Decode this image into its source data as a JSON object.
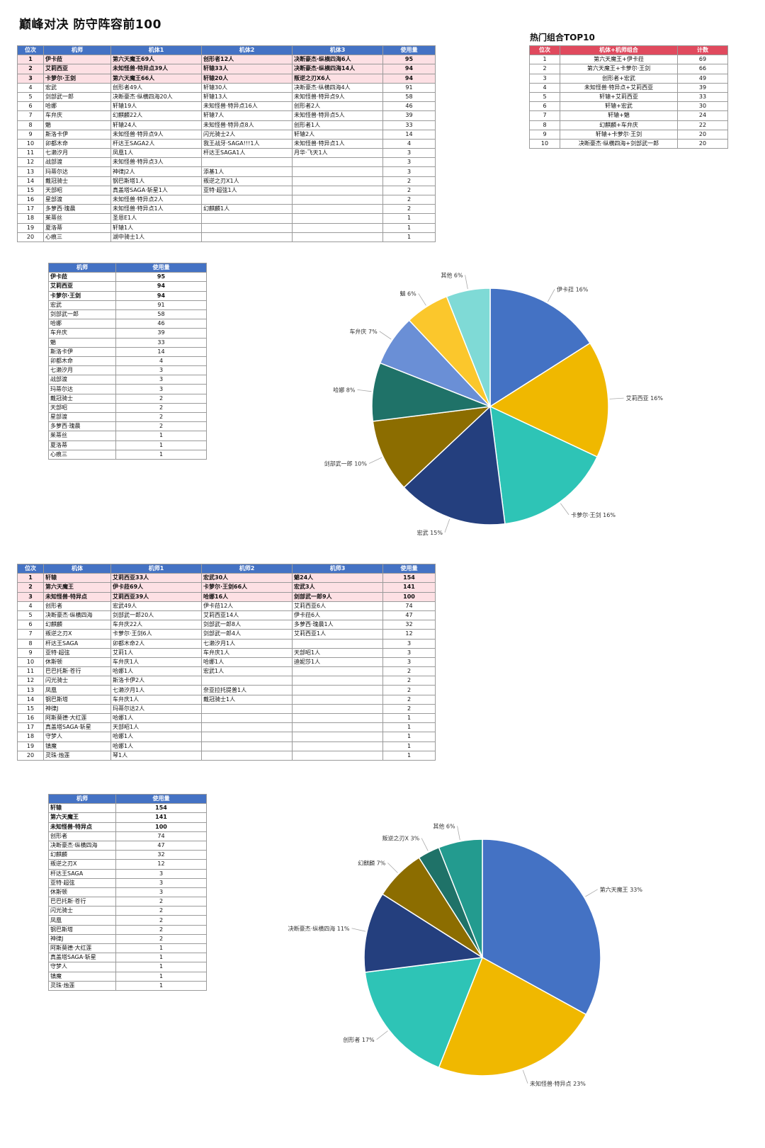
{
  "page_title": "巅峰对决 防守阵容前100",
  "combo_title": "热门组合TOP10",
  "colors": {
    "header_blue": "#4472c4",
    "header_red": "#e04a5e",
    "top_row": "#fde0e4"
  },
  "top_table": {
    "headers": [
      "位次",
      "机师",
      "机体1",
      "机体2",
      "机体3",
      "使用量"
    ],
    "rows": [
      [
        "1",
        "伊卡菈",
        "第六天魔王69人",
        "创形者12人",
        "决断豪杰·纵横四海6人",
        "95"
      ],
      [
        "2",
        "艾莉西亚",
        "未知怪兽·特异点39人",
        "轩辕33人",
        "决断豪杰·纵横四海14人",
        "94"
      ],
      [
        "3",
        "卡萝尔·王剑",
        "第六天魔王66人",
        "轩辕20人",
        "叛逆之刃X6人",
        "94"
      ],
      [
        "4",
        "宏武",
        "创形者49人",
        "轩辕30人",
        "决断豪杰·纵横四海4人",
        "91"
      ],
      [
        "5",
        "剑部武一郎",
        "决断豪杰·纵横四海20人",
        "轩辕13人",
        "未知怪兽·特异点9人",
        "58"
      ],
      [
        "6",
        "哈娜",
        "轩辕19人",
        "未知怪兽·特异点16人",
        "创形者2人",
        "46"
      ],
      [
        "7",
        "车弁庆",
        "幻麒麟22人",
        "轩辕7人",
        "未知怪兽·特异点5人",
        "39"
      ],
      [
        "8",
        "魈",
        "轩辕24人",
        "未知怪兽·特异点8人",
        "创形者1人",
        "33"
      ],
      [
        "9",
        "斯洛卡伊",
        "未知怪兽·特异点9人",
        "闪光骑士2人",
        "轩辕2人",
        "14"
      ],
      [
        "10",
        "卯都木命",
        "杆达王SAGA2人",
        "我王战牙·SAGA!!!1人",
        "未知怪兽·特异点1人",
        "4"
      ],
      [
        "11",
        "七濑汐月",
        "凤凰1人",
        "杆达王SAGA1人",
        "月华·飞天1人",
        "3"
      ],
      [
        "12",
        "战部渡",
        "未知怪兽·特异点3人",
        "",
        "",
        "3"
      ],
      [
        "13",
        "玛蒂尔达",
        "神律J2人",
        "添基1人",
        "",
        "3"
      ],
      [
        "14",
        "戴冠骑士",
        "钢巴斯塔1人",
        "叛逆之刃X1人",
        "",
        "2"
      ],
      [
        "15",
        "天部昭",
        "真盖塔SAGA·斩星1人",
        "亚特·超弦1人",
        "",
        "2"
      ],
      [
        "16",
        "星部渡",
        "未知怪兽·特异点2人",
        "",
        "",
        "2"
      ],
      [
        "17",
        "多萝西·瑰晨",
        "未知怪兽·特异点1人",
        "幻麒麟1人",
        "",
        "2"
      ],
      [
        "18",
        "茱蒂丝",
        "圣恩E1人",
        "",
        "",
        "1"
      ],
      [
        "19",
        "夏洛蒂",
        "轩辕1人",
        "",
        "",
        "1"
      ],
      [
        "20",
        "心痕三",
        "湖中骑士1人",
        "",
        "",
        "1"
      ]
    ]
  },
  "combo_table": {
    "headers": [
      "位次",
      "机体+机师组合",
      "计数"
    ],
    "rows": [
      [
        "1",
        "第六天魔王+伊卡菈",
        "69"
      ],
      [
        "2",
        "第六天魔王+卡萝尔·王剑",
        "66"
      ],
      [
        "3",
        "创形者+宏武",
        "49"
      ],
      [
        "4",
        "未知怪兽·特异点+艾莉西亚",
        "39"
      ],
      [
        "5",
        "轩辕+艾莉西亚",
        "33"
      ],
      [
        "6",
        "轩辕+宏武",
        "30"
      ],
      [
        "7",
        "轩辕+魈",
        "24"
      ],
      [
        "8",
        "幻麒麟+车弁庆",
        "22"
      ],
      [
        "9",
        "轩辕+卡萝尔·王剑",
        "20"
      ],
      [
        "10",
        "决断豪杰·纵横四海+剑部武一郎",
        "20"
      ]
    ]
  },
  "pilot_usage_table": {
    "headers": [
      "机师",
      "使用量"
    ],
    "rows": [
      [
        "伊卡菈",
        "95"
      ],
      [
        "艾莉西亚",
        "94"
      ],
      [
        "卡萝尔·王剑",
        "94"
      ],
      [
        "宏武",
        "91"
      ],
      [
        "剑部武一郎",
        "58"
      ],
      [
        "哈娜",
        "46"
      ],
      [
        "车弁庆",
        "39"
      ],
      [
        "魈",
        "33"
      ],
      [
        "斯洛卡伊",
        "14"
      ],
      [
        "卯都木命",
        "4"
      ],
      [
        "七濑汐月",
        "3"
      ],
      [
        "战部渡",
        "3"
      ],
      [
        "玛蒂尔达",
        "3"
      ],
      [
        "戴冠骑士",
        "2"
      ],
      [
        "天部昭",
        "2"
      ],
      [
        "星部渡",
        "2"
      ],
      [
        "多萝西·瑰晨",
        "2"
      ],
      [
        "茱蒂丝",
        "1"
      ],
      [
        "夏洛蒂",
        "1"
      ],
      [
        "心痕三",
        "1"
      ]
    ]
  },
  "mech_table": {
    "headers": [
      "位次",
      "机体",
      "机师1",
      "机师2",
      "机师3",
      "使用量"
    ],
    "rows": [
      [
        "1",
        "轩辕",
        "艾莉西亚33人",
        "宏武30人",
        "魈24人",
        "154"
      ],
      [
        "2",
        "第六天魔王",
        "伊卡菈69人",
        "卡萝尔·王剑66人",
        "宏武3人",
        "141"
      ],
      [
        "3",
        "未知怪兽·特异点",
        "艾莉西亚39人",
        "哈娜16人",
        "剑部武一郎9人",
        "100"
      ],
      [
        "4",
        "创形者",
        "宏武49人",
        "伊卡菈12人",
        "艾莉西亚6人",
        "74"
      ],
      [
        "5",
        "决断豪杰·纵横四海",
        "剑部武一郎20人",
        "艾莉西亚14人",
        "伊卡菈6人",
        "47"
      ],
      [
        "6",
        "幻麒麟",
        "车弁庆22人",
        "剑部武一郎8人",
        "多萝西·瑰晨1人",
        "32"
      ],
      [
        "7",
        "叛逆之刃X",
        "卡萝尔·王剑6人",
        "剑部武一郎4人",
        "艾莉西亚1人",
        "12"
      ],
      [
        "8",
        "杆达王SAGA",
        "卯都木命2人",
        "七濑汐月1人",
        "",
        "3"
      ],
      [
        "9",
        "亚特·超弦",
        "艾莉1人",
        "车弁庆1人",
        "天部昭1人",
        "3"
      ],
      [
        "10",
        "休斯顿",
        "车弁庆1人",
        "哈娜1人",
        "迪妮莎1人",
        "3"
      ],
      [
        "11",
        "巴巴托斯·苍行",
        "哈娜1人",
        "宏武1人",
        "",
        "2"
      ],
      [
        "12",
        "闪光骑士",
        "斯洛卡伊2人",
        "",
        "",
        "2"
      ],
      [
        "13",
        "凤凰",
        "七濑汐月1人",
        "奈亚拉托提普1人",
        "",
        "2"
      ],
      [
        "14",
        "钢巴斯塔",
        "车弁庆1人",
        "戴冠骑士1人",
        "",
        "2"
      ],
      [
        "15",
        "神律J",
        "玛蒂尔达2人",
        "",
        "",
        "2"
      ],
      [
        "16",
        "阿斯莫德·大红莲",
        "哈娜1人",
        "",
        "",
        "1"
      ],
      [
        "17",
        "真盖塔SAGA·斩星",
        "天部昭1人",
        "",
        "",
        "1"
      ],
      [
        "18",
        "守梦人",
        "哈娜1人",
        "",
        "",
        "1"
      ],
      [
        "19",
        "镇魔",
        "哈娜1人",
        "",
        "",
        "1"
      ],
      [
        "20",
        "灵珠·烛莲",
        "琴1人",
        "",
        "",
        "1"
      ]
    ]
  },
  "mech_usage_table": {
    "headers": [
      "机师",
      "使用量"
    ],
    "rows": [
      [
        "轩辕",
        "154"
      ],
      [
        "第六天魔王",
        "141"
      ],
      [
        "未知怪兽·特异点",
        "100"
      ],
      [
        "创形者",
        "74"
      ],
      [
        "决断豪杰·纵横四海",
        "47"
      ],
      [
        "幻麒麟",
        "32"
      ],
      [
        "叛逆之刃X",
        "12"
      ],
      [
        "杆达王SAGA",
        "3"
      ],
      [
        "亚特·超弦",
        "3"
      ],
      [
        "休斯顿",
        "3"
      ],
      [
        "巴巴托斯·苍行",
        "2"
      ],
      [
        "闪光骑士",
        "2"
      ],
      [
        "凤凰",
        "2"
      ],
      [
        "钢巴斯塔",
        "2"
      ],
      [
        "神律J",
        "2"
      ],
      [
        "阿斯莫德·大红莲",
        "1"
      ],
      [
        "真盖塔SAGA·斩星",
        "1"
      ],
      [
        "守梦人",
        "1"
      ],
      [
        "镇魔",
        "1"
      ],
      [
        "灵珠·烛莲",
        "1"
      ]
    ]
  },
  "chart_data": [
    {
      "type": "pie",
      "title": "",
      "slices": [
        {
          "label": "伊卡菈",
          "percent": 16,
          "color": "#4472c4"
        },
        {
          "label": "艾莉西亚",
          "percent": 16,
          "color": "#f0b800"
        },
        {
          "label": "卡萝尔·王剑",
          "percent": 16,
          "color": "#2ec4b6"
        },
        {
          "label": "宏武",
          "percent": 15,
          "color": "#243f7e"
        },
        {
          "label": "剑部武一郎",
          "percent": 10,
          "color": "#8c6d00"
        },
        {
          "label": "哈娜",
          "percent": 8,
          "color": "#1f7268"
        },
        {
          "label": "车弁庆",
          "percent": 7,
          "color": "#6a8fd6"
        },
        {
          "label": "魈",
          "percent": 6,
          "color": "#fbc72c"
        },
        {
          "label": "其他",
          "percent": 6,
          "color": "#7fdad6"
        }
      ]
    },
    {
      "type": "pie",
      "title": "",
      "slices": [
        {
          "label": "第六天魔王",
          "percent": 33,
          "color": "#4472c4"
        },
        {
          "label": "未知怪兽·特异点",
          "percent": 23,
          "color": "#f0b800"
        },
        {
          "label": "创形者",
          "percent": 17,
          "color": "#2ec4b6"
        },
        {
          "label": "决断豪杰·纵横四海",
          "percent": 11,
          "color": "#243f7e"
        },
        {
          "label": "幻麒麟",
          "percent": 7,
          "color": "#8c6d00"
        },
        {
          "label": "叛逆之刃X",
          "percent": 3,
          "color": "#1f7268"
        },
        {
          "label": "其他",
          "percent": 6,
          "color": "#239b8f"
        }
      ]
    }
  ]
}
